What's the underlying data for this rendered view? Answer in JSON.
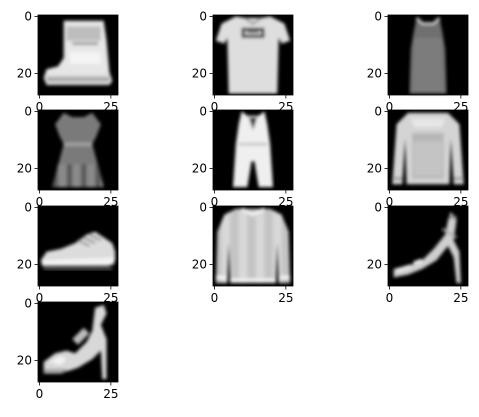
{
  "chart_data": [
    {
      "type": "heatmap",
      "xlabel": "",
      "ylabel": "",
      "xticks": [
        "0",
        "25"
      ],
      "yticks": [
        "0",
        "20"
      ],
      "image": "ankle-boot",
      "colormap": "gray"
    },
    {
      "type": "heatmap",
      "xlabel": "",
      "ylabel": "",
      "xticks": [
        "0",
        "25"
      ],
      "yticks": [
        "0",
        "20"
      ],
      "image": "t-shirt",
      "colormap": "gray"
    },
    {
      "type": "heatmap",
      "xlabel": "",
      "ylabel": "",
      "xticks": [
        "0",
        "25"
      ],
      "yticks": [
        "0",
        "20"
      ],
      "image": "tank-top",
      "colormap": "gray"
    },
    {
      "type": "heatmap",
      "xlabel": "",
      "ylabel": "",
      "xticks": [
        "0",
        "25"
      ],
      "yticks": [
        "0",
        "20"
      ],
      "image": "dress",
      "colormap": "gray"
    },
    {
      "type": "heatmap",
      "xlabel": "",
      "ylabel": "",
      "xticks": [
        "0",
        "25"
      ],
      "yticks": [
        "0",
        "20"
      ],
      "image": "romper",
      "colormap": "gray"
    },
    {
      "type": "heatmap",
      "xlabel": "",
      "ylabel": "",
      "xticks": [
        "0",
        "25"
      ],
      "yticks": [
        "0",
        "20"
      ],
      "image": "pullover",
      "colormap": "gray"
    },
    {
      "type": "heatmap",
      "xlabel": "",
      "ylabel": "",
      "xticks": [
        "0",
        "25"
      ],
      "yticks": [
        "0",
        "20"
      ],
      "image": "sneaker",
      "colormap": "gray"
    },
    {
      "type": "heatmap",
      "xlabel": "",
      "ylabel": "",
      "xticks": [
        "0",
        "25"
      ],
      "yticks": [
        "0",
        "20"
      ],
      "image": "sweater",
      "colormap": "gray"
    },
    {
      "type": "heatmap",
      "xlabel": "",
      "ylabel": "",
      "xticks": [
        "0",
        "25"
      ],
      "yticks": [
        "0",
        "20"
      ],
      "image": "sandal",
      "colormap": "gray"
    },
    {
      "type": "heatmap",
      "xlabel": "",
      "ylabel": "",
      "xticks": [
        "0",
        "25"
      ],
      "yticks": [
        "0",
        "20"
      ],
      "image": "sandal",
      "colormap": "gray"
    }
  ]
}
